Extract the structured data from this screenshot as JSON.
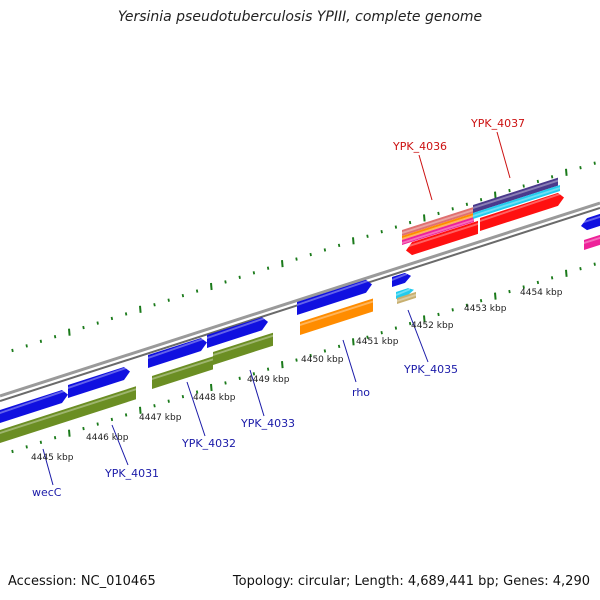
{
  "title": "Yersinia pseudotuberculosis YPIII, complete genome",
  "footer": {
    "accession": "Accession: NC_010465",
    "summary": "Topology: circular; Length: 4,689,441 bp; Genes: 4,290"
  },
  "colors": {
    "backbone": "#8a8a8a",
    "tick": "#1a7a1a",
    "label_blue": "#1a1aa8",
    "label_red": "#cc1111",
    "cds_blue": "#1010e0",
    "cds_green": "#6b8e23",
    "cds_orange": "#ff8c00",
    "cds_red": "#ff1010",
    "cds_cyan": "#22ccee",
    "cds_purple": "#4a3a8c",
    "cds_pink": "#ee2299",
    "cds_salmon": "#e07070",
    "cds_tan": "#c8b070"
  },
  "map": {
    "ticks": [
      {
        "kbp": 4445,
        "label": "4445 kbp"
      },
      {
        "kbp": 4446,
        "label": "4446 kbp"
      },
      {
        "kbp": 4447,
        "label": "4447 kbp"
      },
      {
        "kbp": 4448,
        "label": "4448 kbp"
      },
      {
        "kbp": 4449,
        "label": "4449 kbp"
      },
      {
        "kbp": 4450,
        "label": "4450 kbp"
      },
      {
        "kbp": 4451,
        "label": "4451 kbp"
      },
      {
        "kbp": 4452,
        "label": "4452 kbp"
      },
      {
        "kbp": 4453,
        "label": "4453 kbp"
      },
      {
        "kbp": 4454,
        "label": "4454 kbp"
      }
    ],
    "gene_labels": [
      {
        "name": "wecC",
        "color": "label_blue"
      },
      {
        "name": "YPK_4031",
        "color": "label_blue"
      },
      {
        "name": "YPK_4032",
        "color": "label_blue"
      },
      {
        "name": "YPK_4033",
        "color": "label_blue"
      },
      {
        "name": "rho",
        "color": "label_blue"
      },
      {
        "name": "YPK_4035",
        "color": "label_blue"
      },
      {
        "name": "YPK_4036",
        "color": "label_red"
      },
      {
        "name": "YPK_4037",
        "color": "label_red"
      }
    ]
  }
}
